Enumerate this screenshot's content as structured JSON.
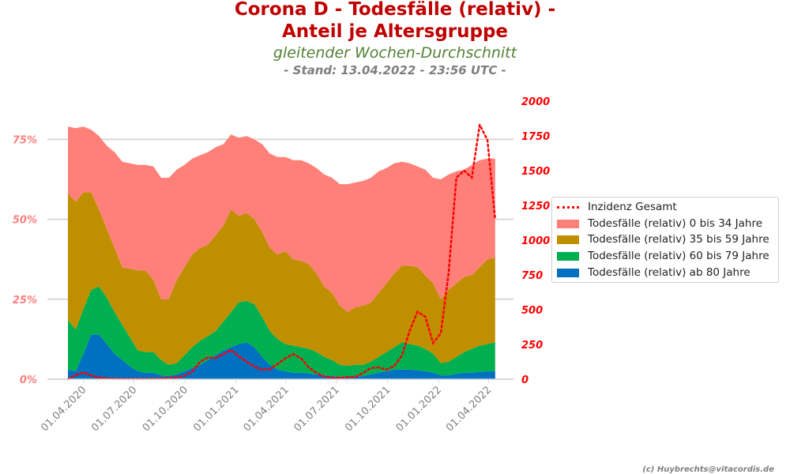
{
  "header": {
    "title_line1": "Corona D - Todesfälle (relativ) -",
    "title_line2": "Anteil je Altersgruppe",
    "subtitle": "gleitender Wochen-Durchschnitt",
    "stand": "- Stand: 13.04.2022 - 23:56 UTC -"
  },
  "footer": "(c) Huybrechts@vitacordis.de",
  "colors": {
    "title": "#c00000",
    "age_0_34": "#ff7f79",
    "age_35_59": "#bf8f00",
    "age_60_79": "#00b050",
    "age_80": "#0070c0",
    "incidence": "#ff0000",
    "left_ticks": "#ff7f7f",
    "right_ticks": "#ff0000"
  },
  "chart_data": {
    "type": "area",
    "stacked": true,
    "title": "Corona D - Todesfälle (relativ) - Anteil je Altersgruppe",
    "x_start": "2020-03-04",
    "x_step_days": 14,
    "xlim": [
      "2020-01-27",
      "2022-05-16"
    ],
    "x_ticks": [
      "01.04.2020",
      "01.07.2020",
      "01.10.2020",
      "01.01.2021",
      "01.04.2021",
      "01.07.2021",
      "01.10.2021",
      "01.01.2022",
      "01.04.2022"
    ],
    "ylim": [
      0,
      91.4
    ],
    "y_ticks": [
      0,
      25,
      50,
      75
    ],
    "y_tick_labels": [
      "0%",
      "25%",
      "50%",
      "75%"
    ],
    "y2lim": [
      0,
      2102
    ],
    "y2_ticks": [
      0,
      250,
      500,
      750,
      1000,
      1250,
      1500,
      1750,
      2000
    ],
    "y2_tick_labels": [
      "0",
      "250",
      "500",
      "750",
      "1000",
      "1250",
      "1500",
      "1750",
      "2000"
    ],
    "grid": "horizontal",
    "legend_position": "right",
    "series": [
      {
        "name": "Todesfälle (relativ) ab 80 Jahre",
        "key": "age_80",
        "axis": "left",
        "values": [
          3,
          2.5,
          8,
          14,
          14,
          11,
          8,
          6,
          4,
          2.5,
          2,
          2,
          1.2,
          1,
          1.5,
          2.5,
          3.5,
          4.5,
          6,
          7.5,
          9,
          10,
          11,
          11.5,
          10,
          7,
          4.5,
          3,
          2.5,
          2,
          2,
          1.8,
          1.5,
          1.2,
          1,
          0.8,
          0.7,
          0.8,
          1,
          1.5,
          2,
          2.5,
          3,
          3,
          3,
          2.8,
          2.5,
          2,
          1.2,
          1.2,
          1.7,
          2,
          2,
          2.3,
          2.5,
          2.5
        ]
      },
      {
        "name": "Todesfälle (relativ) 60 bis 79 Jahre",
        "key": "age_60_79",
        "axis": "left",
        "values": [
          15.5,
          13,
          14,
          14,
          15,
          14.5,
          13,
          11,
          9,
          6.5,
          6.5,
          6.5,
          4.8,
          3.5,
          3.5,
          5,
          6.5,
          7.5,
          7.5,
          7.5,
          9,
          11,
          13,
          13,
          13.5,
          12.5,
          10.5,
          9.5,
          8.5,
          8.5,
          8,
          7.7,
          7,
          5.8,
          5,
          3.7,
          3.5,
          3.7,
          3.5,
          4,
          5,
          6,
          7,
          8.5,
          8,
          7.7,
          7,
          6,
          3.8,
          4.3,
          5.3,
          6.5,
          7.5,
          8.2,
          8.5,
          9
        ]
      },
      {
        "name": "Todesfälle (relativ) 35 bis 59 Jahre",
        "key": "age_35_59",
        "axis": "left",
        "values": [
          39.5,
          40,
          36.5,
          30.5,
          24,
          21.5,
          20,
          18,
          21.5,
          25,
          25.5,
          22.5,
          19,
          20.5,
          26,
          27.5,
          29,
          29,
          28.5,
          30,
          30,
          32,
          27,
          27.5,
          26.5,
          26.5,
          26,
          26.5,
          29,
          27,
          27,
          26.5,
          24.5,
          22,
          21,
          18.5,
          16.8,
          18,
          18.5,
          18.5,
          20,
          21.5,
          23,
          24,
          24.5,
          24.5,
          23,
          22,
          20,
          22.5,
          23,
          23.5,
          23,
          24.5,
          26.5,
          26.5
        ]
      },
      {
        "name": "Todesfälle (relativ) 0 bis 34 Jahre",
        "key": "age_0_34",
        "axis": "left",
        "values": [
          21,
          23,
          20.5,
          19.5,
          23,
          26,
          30,
          33,
          33,
          33,
          33,
          35.5,
          38,
          38,
          34.5,
          32,
          30,
          29,
          29,
          27.5,
          25.5,
          23.5,
          24.5,
          24,
          25,
          27.5,
          29.5,
          30.5,
          29.5,
          31,
          31.5,
          31.5,
          33,
          35,
          36,
          38,
          40,
          39,
          39,
          39,
          38,
          36,
          34.5,
          32.5,
          32,
          31.5,
          33,
          33,
          37.5,
          36,
          35,
          33.5,
          34.5,
          33.5,
          31.5,
          31
        ]
      },
      {
        "name": "Inzidenz Gesamt",
        "key": "incidence",
        "axis": "right",
        "type": "line",
        "values": [
          0,
          30,
          48,
          27,
          12,
          5,
          3,
          2,
          2,
          2,
          2,
          3,
          5,
          8,
          12,
          25,
          55,
          125,
          155,
          153,
          180,
          210,
          165,
          125,
          90,
          68,
          72,
          110,
          150,
          180,
          150,
          85,
          45,
          20,
          11,
          10,
          15,
          17,
          45,
          80,
          85,
          68,
          95,
          170,
          350,
          485,
          450,
          260,
          330,
          760,
          1450,
          1500,
          1450,
          1830,
          1720,
          1150
        ]
      }
    ],
    "legend": [
      "Inzidenz Gesamt",
      "Todesfälle (relativ) 0 bis 34 Jahre",
      "Todesfälle (relativ) 35 bis 59 Jahre",
      "Todesfälle (relativ) 60 bis 79 Jahre",
      "Todesfälle (relativ) ab 80 Jahre"
    ]
  }
}
